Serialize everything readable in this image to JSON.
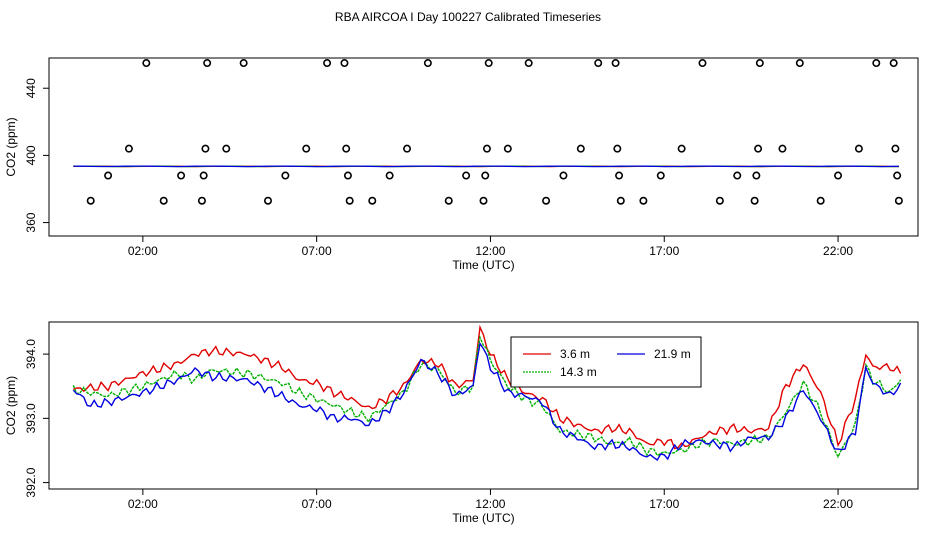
{
  "title": "RBA AIRCOA I  Day 100227  Calibrated Timeseries",
  "chart_data": [
    {
      "type": "scatter",
      "xlabel": "Time (UTC)",
      "ylabel": "CO2 (ppm)",
      "xlim": [
        -0.7,
        24.3
      ],
      "ylim": [
        352,
        458
      ],
      "x_ticks": [
        2,
        7,
        12,
        17,
        22
      ],
      "x_tick_labels": [
        "02:00",
        "07:00",
        "12:00",
        "17:00",
        "22:00"
      ],
      "y_ticks": [
        360,
        400,
        440
      ],
      "y_tick_labels": [
        "360",
        "400",
        "440"
      ],
      "points": [
        [
          0.5,
          373
        ],
        [
          1.0,
          388
        ],
        [
          1.6,
          404
        ],
        [
          2.1,
          455
        ],
        [
          2.6,
          373
        ],
        [
          3.1,
          388
        ],
        [
          3.7,
          373
        ],
        [
          3.75,
          388
        ],
        [
          3.8,
          404
        ],
        [
          3.85,
          455
        ],
        [
          4.4,
          404
        ],
        [
          4.9,
          455
        ],
        [
          5.6,
          373
        ],
        [
          6.1,
          388
        ],
        [
          6.7,
          404
        ],
        [
          7.3,
          455
        ],
        [
          7.8,
          455
        ],
        [
          7.85,
          404
        ],
        [
          7.9,
          388
        ],
        [
          7.95,
          373
        ],
        [
          8.6,
          373
        ],
        [
          9.1,
          388
        ],
        [
          9.6,
          404
        ],
        [
          10.2,
          455
        ],
        [
          10.8,
          373
        ],
        [
          11.3,
          388
        ],
        [
          11.8,
          373
        ],
        [
          11.85,
          388
        ],
        [
          11.9,
          404
        ],
        [
          11.95,
          455
        ],
        [
          12.5,
          404
        ],
        [
          13.1,
          455
        ],
        [
          13.6,
          373
        ],
        [
          14.1,
          388
        ],
        [
          14.6,
          404
        ],
        [
          15.1,
          455
        ],
        [
          15.6,
          455
        ],
        [
          15.65,
          404
        ],
        [
          15.7,
          388
        ],
        [
          15.75,
          373
        ],
        [
          16.4,
          373
        ],
        [
          16.9,
          388
        ],
        [
          17.5,
          404
        ],
        [
          18.1,
          455
        ],
        [
          18.6,
          373
        ],
        [
          19.1,
          388
        ],
        [
          19.6,
          373
        ],
        [
          19.65,
          388
        ],
        [
          19.7,
          404
        ],
        [
          19.75,
          455
        ],
        [
          20.4,
          404
        ],
        [
          20.9,
          455
        ],
        [
          21.5,
          373
        ],
        [
          22.0,
          388
        ],
        [
          22.6,
          404
        ],
        [
          23.1,
          455
        ],
        [
          23.6,
          455
        ],
        [
          23.65,
          404
        ],
        [
          23.7,
          388
        ],
        [
          23.75,
          373
        ]
      ],
      "series": [
        {
          "name": "3.6 m",
          "color": "#e00000"
        },
        {
          "name": "14.3 m",
          "color": "#00b000"
        },
        {
          "name": "21.9 m",
          "color": "#0000e0"
        }
      ],
      "flat_level": 393.5,
      "flat_range": [
        0.0,
        23.8
      ]
    },
    {
      "type": "line",
      "xlabel": "Time (UTC)",
      "ylabel": "CO2 (ppm)",
      "xlim": [
        -0.7,
        24.3
      ],
      "ylim": [
        391.9,
        394.5
      ],
      "x_ticks": [
        2,
        7,
        12,
        17,
        22
      ],
      "x_tick_labels": [
        "02:00",
        "07:00",
        "12:00",
        "17:00",
        "22:00"
      ],
      "y_ticks": [
        392.0,
        393.0,
        394.0
      ],
      "y_tick_labels": [
        "392.0",
        "393.0",
        "394.0"
      ],
      "legend": [
        "3.6 m",
        "14.3 m",
        "21.9 m"
      ],
      "legend_position": "top-center",
      "series": [
        {
          "name": "3.6 m",
          "color": "#e00000",
          "points": [
            [
              0,
              393.45
            ],
            [
              1,
              393.5
            ],
            [
              2,
              393.7
            ],
            [
              3,
              393.85
            ],
            [
              3.5,
              394.0
            ],
            [
              4,
              394.05
            ],
            [
              5,
              394.0
            ],
            [
              6,
              393.8
            ],
            [
              6.5,
              393.6
            ],
            [
              7,
              393.55
            ],
            [
              7.5,
              393.4
            ],
            [
              8,
              393.3
            ],
            [
              8.5,
              393.15
            ],
            [
              9,
              393.3
            ],
            [
              9.5,
              393.5
            ],
            [
              10,
              393.9
            ],
            [
              10.5,
              393.85
            ],
            [
              11,
              393.5
            ],
            [
              11.5,
              393.6
            ],
            [
              11.7,
              394.4
            ],
            [
              12,
              394.0
            ],
            [
              12.5,
              393.6
            ],
            [
              13,
              393.4
            ],
            [
              13.5,
              393.3
            ],
            [
              14,
              393.0
            ],
            [
              14.5,
              392.9
            ],
            [
              15,
              392.8
            ],
            [
              15.5,
              392.85
            ],
            [
              16,
              392.8
            ],
            [
              16.5,
              392.6
            ],
            [
              17,
              392.65
            ],
            [
              17.5,
              392.55
            ],
            [
              18,
              392.7
            ],
            [
              18.5,
              392.8
            ],
            [
              19,
              392.85
            ],
            [
              19.5,
              392.8
            ],
            [
              20,
              392.85
            ],
            [
              20.5,
              393.5
            ],
            [
              21,
              393.85
            ],
            [
              21.5,
              393.4
            ],
            [
              22,
              392.6
            ],
            [
              22.5,
              393.3
            ],
            [
              22.8,
              394.0
            ],
            [
              23,
              393.8
            ],
            [
              23.5,
              393.8
            ],
            [
              23.8,
              393.7
            ]
          ]
        },
        {
          "name": "14.3 m",
          "color": "#00b000",
          "points": [
            [
              0,
              393.45
            ],
            [
              1,
              393.35
            ],
            [
              2,
              393.5
            ],
            [
              3,
              393.7
            ],
            [
              3.5,
              393.6
            ],
            [
              4,
              393.75
            ],
            [
              5,
              393.7
            ],
            [
              6,
              393.55
            ],
            [
              6.5,
              393.4
            ],
            [
              7,
              393.3
            ],
            [
              7.5,
              393.2
            ],
            [
              8,
              393.1
            ],
            [
              8.5,
              393.0
            ],
            [
              9,
              393.2
            ],
            [
              9.5,
              393.4
            ],
            [
              10,
              393.85
            ],
            [
              10.5,
              393.75
            ],
            [
              11,
              393.4
            ],
            [
              11.5,
              393.5
            ],
            [
              11.7,
              394.3
            ],
            [
              12,
              393.9
            ],
            [
              12.5,
              393.5
            ],
            [
              13,
              393.3
            ],
            [
              13.5,
              393.2
            ],
            [
              14,
              392.8
            ],
            [
              14.5,
              392.75
            ],
            [
              15,
              392.7
            ],
            [
              15.5,
              392.6
            ],
            [
              16,
              392.65
            ],
            [
              16.5,
              392.5
            ],
            [
              17,
              392.45
            ],
            [
              17.5,
              392.5
            ],
            [
              18,
              392.6
            ],
            [
              18.5,
              392.65
            ],
            [
              19,
              392.6
            ],
            [
              19.5,
              392.65
            ],
            [
              20,
              392.7
            ],
            [
              20.5,
              393.1
            ],
            [
              21,
              393.55
            ],
            [
              21.5,
              393.1
            ],
            [
              22,
              392.4
            ],
            [
              22.5,
              392.9
            ],
            [
              22.8,
              393.8
            ],
            [
              23,
              393.6
            ],
            [
              23.5,
              393.4
            ],
            [
              23.8,
              393.6
            ]
          ]
        },
        {
          "name": "21.9 m",
          "color": "#0000e0",
          "points": [
            [
              0,
              393.45
            ],
            [
              0.5,
              393.2
            ],
            [
              1,
              393.25
            ],
            [
              2,
              393.4
            ],
            [
              3,
              393.6
            ],
            [
              3.5,
              393.75
            ],
            [
              4,
              393.65
            ],
            [
              5,
              393.6
            ],
            [
              6,
              393.35
            ],
            [
              6.5,
              393.2
            ],
            [
              7,
              393.15
            ],
            [
              7.5,
              393.0
            ],
            [
              8,
              393.0
            ],
            [
              8.5,
              392.9
            ],
            [
              9,
              393.1
            ],
            [
              9.5,
              393.4
            ],
            [
              10,
              393.9
            ],
            [
              10.5,
              393.7
            ],
            [
              11,
              393.35
            ],
            [
              11.5,
              393.5
            ],
            [
              11.7,
              394.2
            ],
            [
              12,
              393.8
            ],
            [
              12.5,
              393.4
            ],
            [
              13,
              393.35
            ],
            [
              13.5,
              393.25
            ],
            [
              14,
              392.8
            ],
            [
              14.5,
              392.7
            ],
            [
              15,
              392.55
            ],
            [
              15.5,
              392.6
            ],
            [
              16,
              392.55
            ],
            [
              16.5,
              392.4
            ],
            [
              17,
              392.4
            ],
            [
              17.5,
              392.6
            ],
            [
              18,
              392.65
            ],
            [
              18.5,
              392.6
            ],
            [
              19,
              392.55
            ],
            [
              19.5,
              392.7
            ],
            [
              20,
              392.7
            ],
            [
              20.5,
              393.0
            ],
            [
              21,
              393.45
            ],
            [
              21.5,
              393.0
            ],
            [
              22,
              392.45
            ],
            [
              22.5,
              392.8
            ],
            [
              22.8,
              393.8
            ],
            [
              23,
              393.55
            ],
            [
              23.5,
              393.35
            ],
            [
              23.8,
              393.55
            ]
          ]
        }
      ]
    }
  ]
}
